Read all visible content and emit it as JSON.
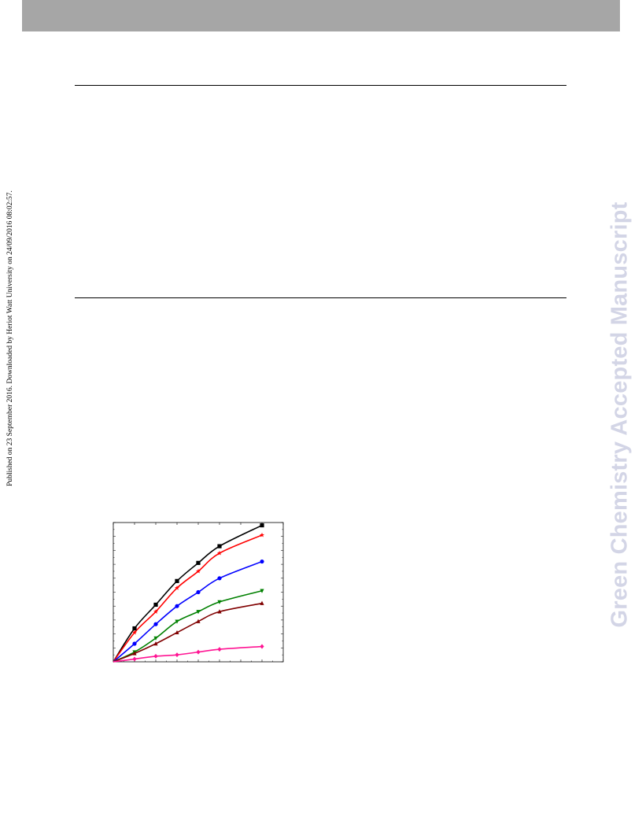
{
  "publication_note": "Published on 23 September 2016. Downloaded by Heriot Watt University on 24/09/2016 08:02:57.",
  "watermark": "Green Chemistry Accepted Manuscript",
  "chart_data": {
    "type": "line",
    "title": "",
    "xlabel": "",
    "ylabel": "",
    "x": [
      0,
      1,
      2,
      3,
      4,
      5,
      7
    ],
    "xlim": [
      0,
      8
    ],
    "ylim": [
      0,
      100
    ],
    "grid": false,
    "series": [
      {
        "color": "#000000",
        "marker": "square",
        "values": [
          0,
          24,
          41,
          58,
          71,
          83,
          98
        ]
      },
      {
        "color": "#ff0000",
        "marker": "star",
        "values": [
          0,
          21,
          36,
          53,
          65,
          78,
          91
        ]
      },
      {
        "color": "#0000ff",
        "marker": "circle",
        "values": [
          0,
          13,
          27,
          40,
          50,
          60,
          72
        ]
      },
      {
        "color": "#008000",
        "marker": "triangle-down",
        "values": [
          0,
          7,
          17,
          29,
          36,
          43,
          51
        ]
      },
      {
        "color": "#800000",
        "marker": "triangle-up",
        "values": [
          0,
          6,
          13,
          21,
          29,
          36,
          42
        ]
      },
      {
        "color": "#ff1493",
        "marker": "diamond",
        "values": [
          0,
          2,
          4,
          5,
          7,
          9,
          11
        ]
      }
    ]
  }
}
